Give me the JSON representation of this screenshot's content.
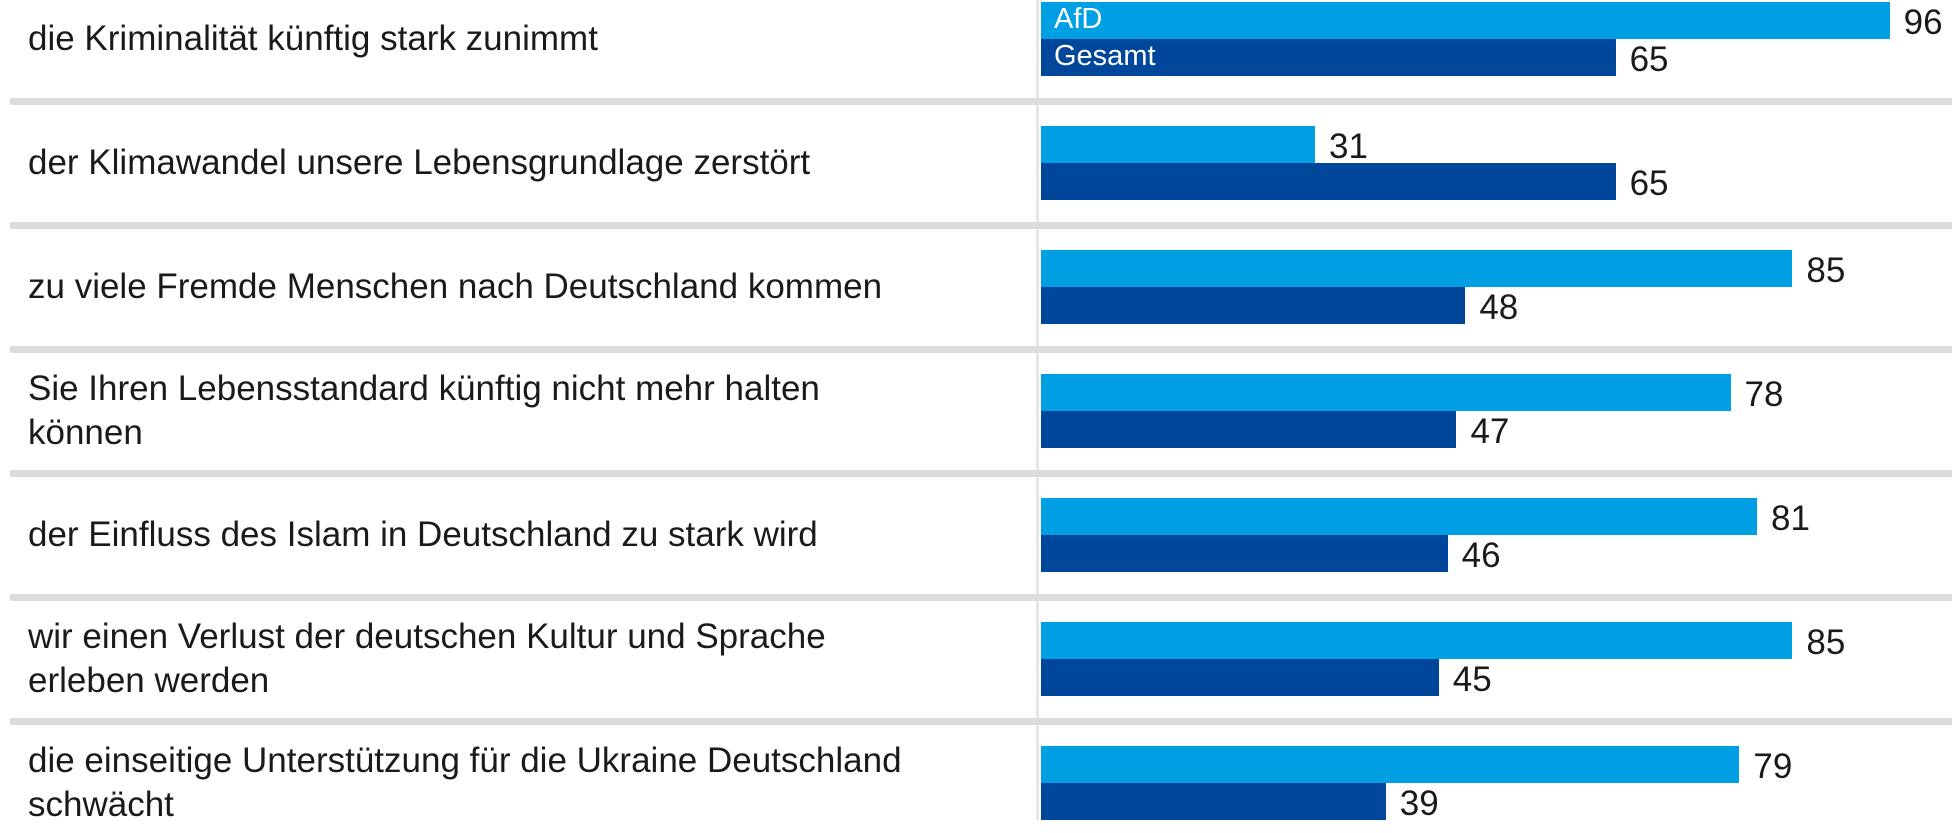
{
  "chart_data": {
    "type": "bar",
    "orientation": "horizontal",
    "categories": [
      "die Kriminalität künftig stark zunimmt",
      "der Klimawandel unsere Lebensgrundlage zerstört",
      "zu viele Fremde Menschen nach Deutschland kommen",
      "Sie Ihren Lebensstandard künftig nicht mehr halten können",
      "der Einfluss des Islam in Deutschland zu stark wird",
      "wir einen Verlust der deutschen Kultur und Sprache erleben werden",
      "die einseitige Unterstützung für die Ukraine Deutschland schwächt"
    ],
    "series": [
      {
        "name": "AfD",
        "color": "#009fe3",
        "values": [
          96,
          31,
          85,
          78,
          81,
          85,
          79
        ]
      },
      {
        "name": "Gesamt",
        "color": "#00469b",
        "values": [
          65,
          65,
          48,
          47,
          46,
          45,
          39
        ]
      }
    ],
    "xlim": [
      0,
      100
    ]
  }
}
